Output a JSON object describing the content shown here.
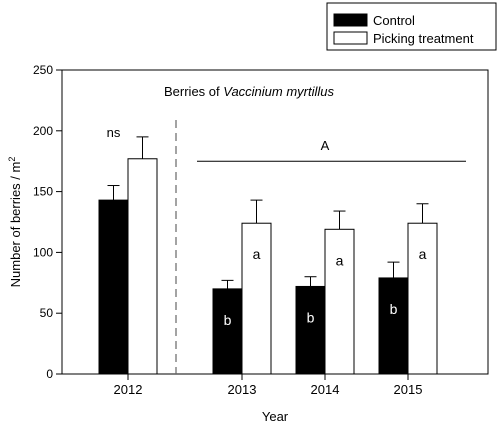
{
  "chart_data": {
    "type": "bar",
    "title_prefix": "Berries of ",
    "title_italic": "Vaccinium myrtillus",
    "xlabel": "Year",
    "ylabel": "Number of berries / m",
    "ylabel_superscript": "2",
    "ylim": [
      0,
      250
    ],
    "yticks": [
      0,
      50,
      100,
      150,
      200,
      250
    ],
    "categories": [
      "2012",
      "2013",
      "2014",
      "2015"
    ],
    "series": [
      {
        "name": "Control",
        "color": "#000000",
        "values": [
          143,
          70,
          72,
          79
        ],
        "errors": [
          12,
          7,
          8,
          13
        ],
        "labels": [
          "",
          "b",
          "b",
          "b"
        ]
      },
      {
        "name": "Picking treatment",
        "color": "#ffffff",
        "values": [
          177,
          124,
          119,
          124
        ],
        "errors": [
          18,
          19,
          15,
          16
        ],
        "labels": [
          "",
          "a",
          "a",
          "a"
        ]
      }
    ],
    "annotations": {
      "ns_label": "ns",
      "group_label": "A",
      "group_line_y": 175
    },
    "legend_position": "top-right",
    "divider_after_category": 0,
    "grid": false
  }
}
